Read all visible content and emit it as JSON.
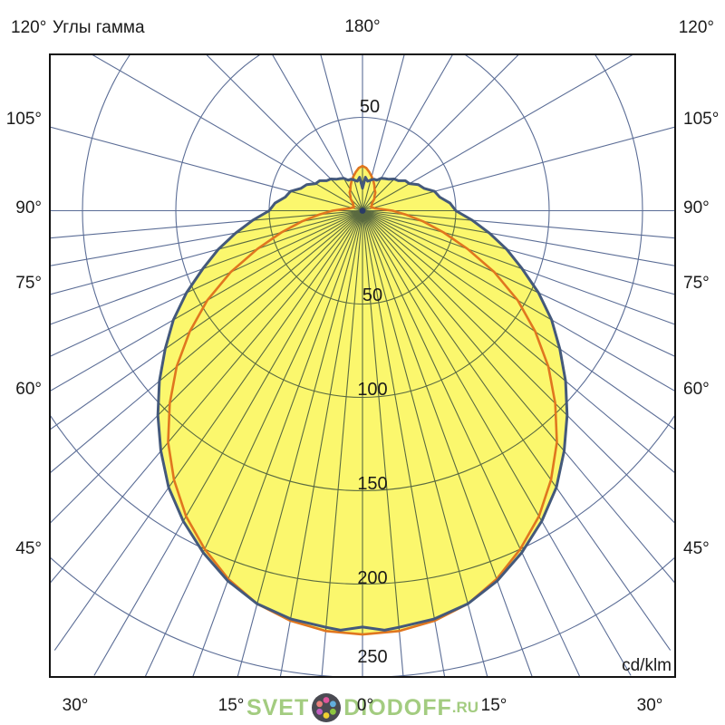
{
  "page": {
    "background_color": "#ffffff"
  },
  "chart_data": {
    "type": "polar_photometric_curve",
    "title": "Углы гамма",
    "units_label": "cd/klm",
    "radial_max": 250,
    "radial_ticks": [
      50,
      100,
      150,
      200,
      250
    ],
    "radial_tick_labels": [
      "50",
      "100",
      "150",
      "200",
      "250"
    ],
    "upper_radial_tick_label": "50",
    "top_angle_label": "180°",
    "corner_angle_label": "120°",
    "side_angle_labels": [
      "105°",
      "90°",
      "75°",
      "60°",
      "45°"
    ],
    "bottom_angle_labels": [
      "30°",
      "15°",
      "0°",
      "15°",
      "30°"
    ],
    "grid_ray_step_lower_deg": 5,
    "grid_ray_step_upper_deg": 15,
    "grid_on": true,
    "legend": "none",
    "fill_color": "#fbf76d",
    "grid_color": "#5b6d96",
    "frame_color": "#131313",
    "text_color": "#1a1a1a",
    "center_dot_color": "#2a3b66",
    "series": [
      {
        "name": "blue-curve",
        "color": "#44597b",
        "points_gamma_cd": [
          [
            0,
            223
          ],
          [
            3,
            225
          ],
          [
            5,
            224
          ],
          [
            10,
            222
          ],
          [
            15,
            218
          ],
          [
            20,
            211
          ],
          [
            25,
            202
          ],
          [
            30,
            192
          ],
          [
            35,
            181
          ],
          [
            40,
            168
          ],
          [
            45,
            155
          ],
          [
            50,
            142
          ],
          [
            55,
            129
          ],
          [
            60,
            117
          ],
          [
            65,
            104
          ],
          [
            70,
            91
          ],
          [
            75,
            80
          ],
          [
            80,
            69
          ],
          [
            85,
            59
          ],
          [
            90,
            50
          ],
          [
            95,
            47
          ],
          [
            100,
            42
          ],
          [
            105,
            40
          ],
          [
            110,
            35
          ],
          [
            115,
            33
          ],
          [
            120,
            29
          ],
          [
            125,
            28
          ],
          [
            130,
            25
          ],
          [
            135,
            24
          ],
          [
            140,
            22
          ],
          [
            145,
            21
          ],
          [
            150,
            20
          ],
          [
            155,
            18
          ],
          [
            160,
            18
          ],
          [
            165,
            17
          ],
          [
            170,
            16
          ],
          [
            175,
            18
          ],
          [
            180,
            12
          ]
        ]
      },
      {
        "name": "red-curve",
        "color": "#e0761f",
        "points_gamma_cd": [
          [
            0,
            227
          ],
          [
            5,
            226
          ],
          [
            10,
            223
          ],
          [
            15,
            218
          ],
          [
            20,
            210
          ],
          [
            25,
            200
          ],
          [
            30,
            189
          ],
          [
            35,
            176
          ],
          [
            40,
            162
          ],
          [
            45,
            146
          ],
          [
            50,
            130
          ],
          [
            55,
            113
          ],
          [
            60,
            96
          ],
          [
            65,
            78
          ],
          [
            70,
            60
          ],
          [
            75,
            45
          ],
          [
            80,
            33
          ],
          [
            85,
            23
          ],
          [
            90,
            16
          ],
          [
            95,
            10
          ],
          [
            100,
            7
          ],
          [
            105,
            6
          ],
          [
            110,
            5
          ],
          [
            115,
            5
          ],
          [
            120,
            6
          ],
          [
            125,
            6
          ],
          [
            130,
            7
          ],
          [
            135,
            9
          ],
          [
            140,
            10
          ],
          [
            145,
            12
          ],
          [
            150,
            13
          ],
          [
            155,
            15
          ],
          [
            160,
            17
          ],
          [
            165,
            19
          ],
          [
            170,
            21
          ],
          [
            175,
            23
          ],
          [
            180,
            24
          ]
        ]
      }
    ]
  },
  "watermark": {
    "prefix": "SVET",
    "suffix": "DIODOFF",
    "tld": ".RU",
    "color": "#a3cc80",
    "logo_circle_color": "#4a4a52",
    "logo_dot_colors": [
      "#e0559c",
      "#62aede",
      "#8cc63e",
      "#f0d030",
      "#c05cc0",
      "#e8807a"
    ]
  }
}
